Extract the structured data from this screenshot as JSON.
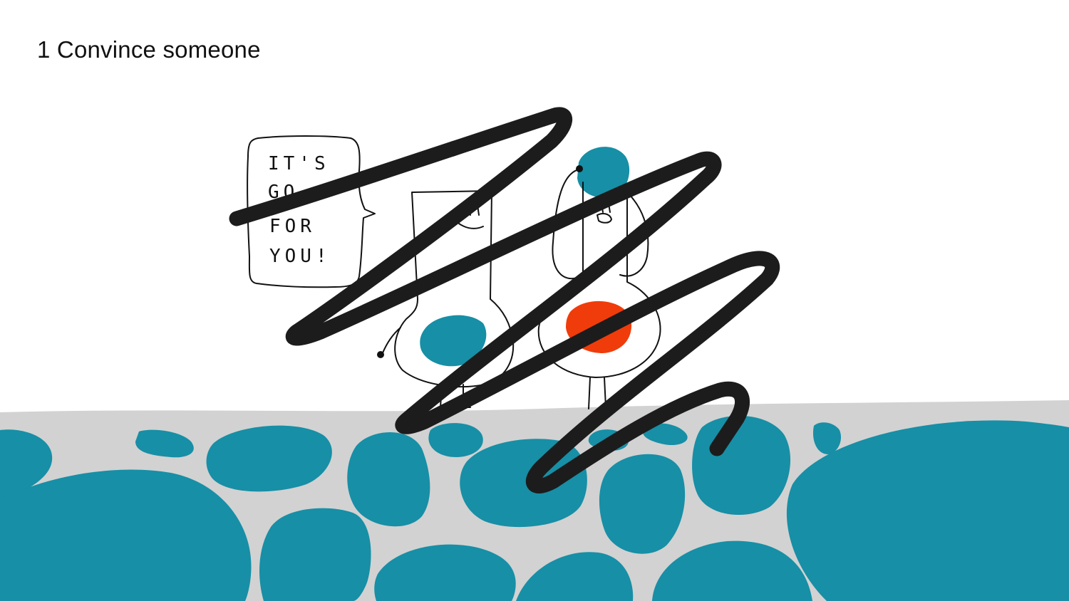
{
  "slide": {
    "title": "1 Convince someone"
  },
  "speech_bubble": {
    "line1": "IT'S",
    "line2": "GO",
    "line3": "FOR",
    "line4": "YOU!"
  },
  "colors": {
    "background": "#ffffff",
    "ground": "#d2d2d2",
    "stones": "#178fa6",
    "accent_red": "#f03c0a",
    "ink": "#111111",
    "scribble": "#1c1c1c"
  },
  "icons": {
    "scribble": "crossed-out-scribble",
    "characters": "two-doodle-characters"
  }
}
